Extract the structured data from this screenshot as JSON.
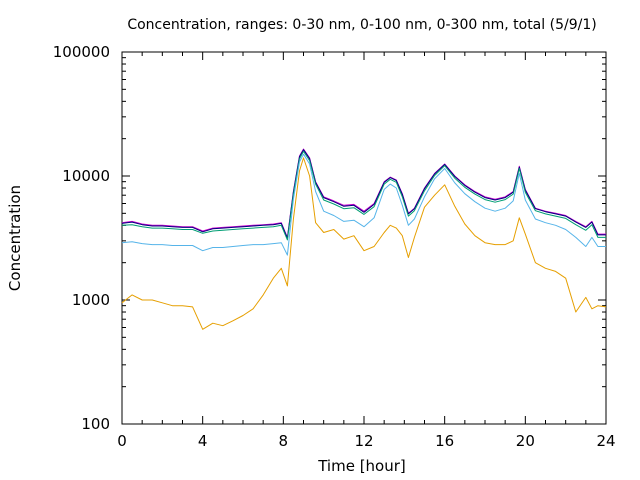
{
  "chart_data": {
    "type": "line",
    "title": "Concentration, ranges: 0-30 nm, 0-100 nm, 0-300 nm, total (5/9/1)",
    "xlabel": "Time [hour]",
    "ylabel": "Concentration",
    "xlim": [
      0,
      24
    ],
    "ylim": [
      100,
      100000
    ],
    "yscale": "log",
    "grid": false,
    "legend": "none",
    "x_ticks": [
      "0",
      "4",
      "8",
      "12",
      "16",
      "20",
      "24"
    ],
    "y_ticks": [
      "100",
      "1000",
      "10000",
      "100000"
    ],
    "x_tick_values": [
      0,
      4,
      8,
      12,
      16,
      20,
      24
    ],
    "y_tick_values": [
      100,
      1000,
      10000,
      100000
    ],
    "x": [
      0,
      0.5,
      1,
      1.5,
      2,
      2.5,
      3,
      3.5,
      4,
      4.5,
      5,
      5.5,
      6,
      6.5,
      7,
      7.5,
      7.9,
      8.2,
      8.5,
      8.8,
      9,
      9.3,
      9.6,
      10,
      10.5,
      11,
      11.5,
      12,
      12.5,
      13,
      13.3,
      13.6,
      13.9,
      14.2,
      14.5,
      15,
      15.5,
      16,
      16.5,
      17,
      17.5,
      18,
      18.5,
      19,
      19.4,
      19.7,
      20,
      20.5,
      21,
      21.5,
      22,
      22.5,
      23,
      23.3,
      23.6,
      24
    ],
    "series": [
      {
        "color": "#cc00cc",
        "values": [
          4200,
          4300,
          4100,
          4000,
          4000,
          3950,
          3900,
          3900,
          3600,
          3800,
          3850,
          3900,
          3950,
          4000,
          4050,
          4100,
          4200,
          3200,
          7500,
          14500,
          16500,
          14000,
          9000,
          6800,
          6300,
          5800,
          5900,
          5200,
          6000,
          9000,
          9800,
          9300,
          7200,
          5000,
          5500,
          8000,
          10500,
          12500,
          10000,
          8500,
          7500,
          6800,
          6500,
          6800,
          7500,
          12000,
          7800,
          5500,
          5200,
          5000,
          4800,
          4300,
          3900,
          4300,
          3400,
          3400
        ]
      },
      {
        "color": "#000080",
        "values": [
          4150,
          4250,
          4050,
          3950,
          3950,
          3900,
          3850,
          3850,
          3550,
          3750,
          3800,
          3850,
          3900,
          3950,
          4000,
          4050,
          4150,
          3150,
          7400,
          14300,
          16300,
          13800,
          8900,
          6700,
          6200,
          5700,
          5800,
          5100,
          5900,
          8900,
          9700,
          9200,
          7100,
          4950,
          5450,
          7900,
          10400,
          12400,
          9900,
          8400,
          7400,
          6700,
          6400,
          6700,
          7400,
          11800,
          7700,
          5450,
          5150,
          4950,
          4750,
          4250,
          3850,
          4250,
          3350,
          3350
        ]
      },
      {
        "color": "#009e73",
        "values": [
          4000,
          4050,
          3900,
          3800,
          3800,
          3750,
          3700,
          3700,
          3450,
          3600,
          3650,
          3700,
          3750,
          3800,
          3850,
          3900,
          4000,
          3050,
          7100,
          13800,
          15800,
          13300,
          8600,
          6400,
          5950,
          5450,
          5550,
          4900,
          5650,
          8600,
          9400,
          8900,
          6800,
          4750,
          5250,
          7600,
          10100,
          12100,
          9600,
          8100,
          7150,
          6450,
          6150,
          6450,
          7150,
          11500,
          7400,
          5250,
          4950,
          4750,
          4550,
          4050,
          3650,
          4050,
          3200,
          3200
        ]
      },
      {
        "color": "#56b4e9",
        "values": [
          2900,
          2950,
          2850,
          2800,
          2800,
          2750,
          2750,
          2750,
          2500,
          2650,
          2650,
          2700,
          2750,
          2800,
          2800,
          2850,
          2900,
          2300,
          6500,
          13000,
          15000,
          12500,
          7500,
          5200,
          4800,
          4300,
          4400,
          3900,
          4600,
          7800,
          8600,
          8000,
          5800,
          4000,
          4500,
          6800,
          9500,
          11500,
          8800,
          7200,
          6200,
          5500,
          5200,
          5500,
          6300,
          10500,
          6400,
          4500,
          4200,
          4000,
          3700,
          3200,
          2700,
          3200,
          2700,
          2700
        ]
      },
      {
        "color": "#e69f00",
        "values": [
          950,
          1100,
          1000,
          1000,
          950,
          900,
          900,
          880,
          580,
          650,
          620,
          680,
          750,
          850,
          1100,
          1500,
          1800,
          1300,
          4500,
          11000,
          14000,
          10000,
          4200,
          3500,
          3700,
          3100,
          3300,
          2500,
          2700,
          3500,
          4000,
          3800,
          3300,
          2200,
          3200,
          5600,
          7000,
          8500,
          5700,
          4100,
          3300,
          2900,
          2800,
          2800,
          3000,
          4600,
          3400,
          2000,
          1800,
          1700,
          1500,
          800,
          1050,
          850,
          900,
          880
        ]
      }
    ]
  }
}
